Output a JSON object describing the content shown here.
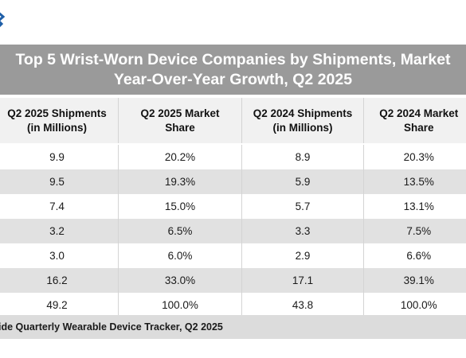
{
  "title": {
    "line1": "Top 5 Wrist-Worn Device Companies by Shipments, Market",
    "line2": "Year-Over-Year Growth, Q2 2025"
  },
  "table": {
    "headers": [
      {
        "line1": "Q2 2025 Shipments",
        "line2": "(in Millions)"
      },
      {
        "line1": "Q2 2025 Market",
        "line2": "Share"
      },
      {
        "line1": "Q2 2024 Shipments",
        "line2": "(in Millions)"
      },
      {
        "line1": "Q2 2024 Market",
        "line2": "Share"
      }
    ],
    "rows": [
      [
        "9.9",
        "20.2%",
        "8.9",
        "20.3%"
      ],
      [
        "9.5",
        "19.3%",
        "5.9",
        "13.5%"
      ],
      [
        "7.4",
        "15.0%",
        "5.7",
        "13.1%"
      ],
      [
        "3.2",
        "6.5%",
        "3.3",
        "7.5%"
      ],
      [
        "3.0",
        "6.0%",
        "2.9",
        "6.6%"
      ],
      [
        "16.2",
        "33.0%",
        "17.1",
        "39.1%"
      ],
      [
        "49.2",
        "100.0%",
        "43.8",
        "100.0%"
      ]
    ]
  },
  "source": "ide Quarterly Wearable Device Tracker, Q2 2025",
  "colors": {
    "title_band": "#9a9a9a",
    "header_bg": "#f1f1f1",
    "row_alt": "#e1e1e1",
    "source_band": "#dcdcdc",
    "logo": "#1f5fa8"
  },
  "icons": {
    "logo": "brand-logo-icon"
  }
}
